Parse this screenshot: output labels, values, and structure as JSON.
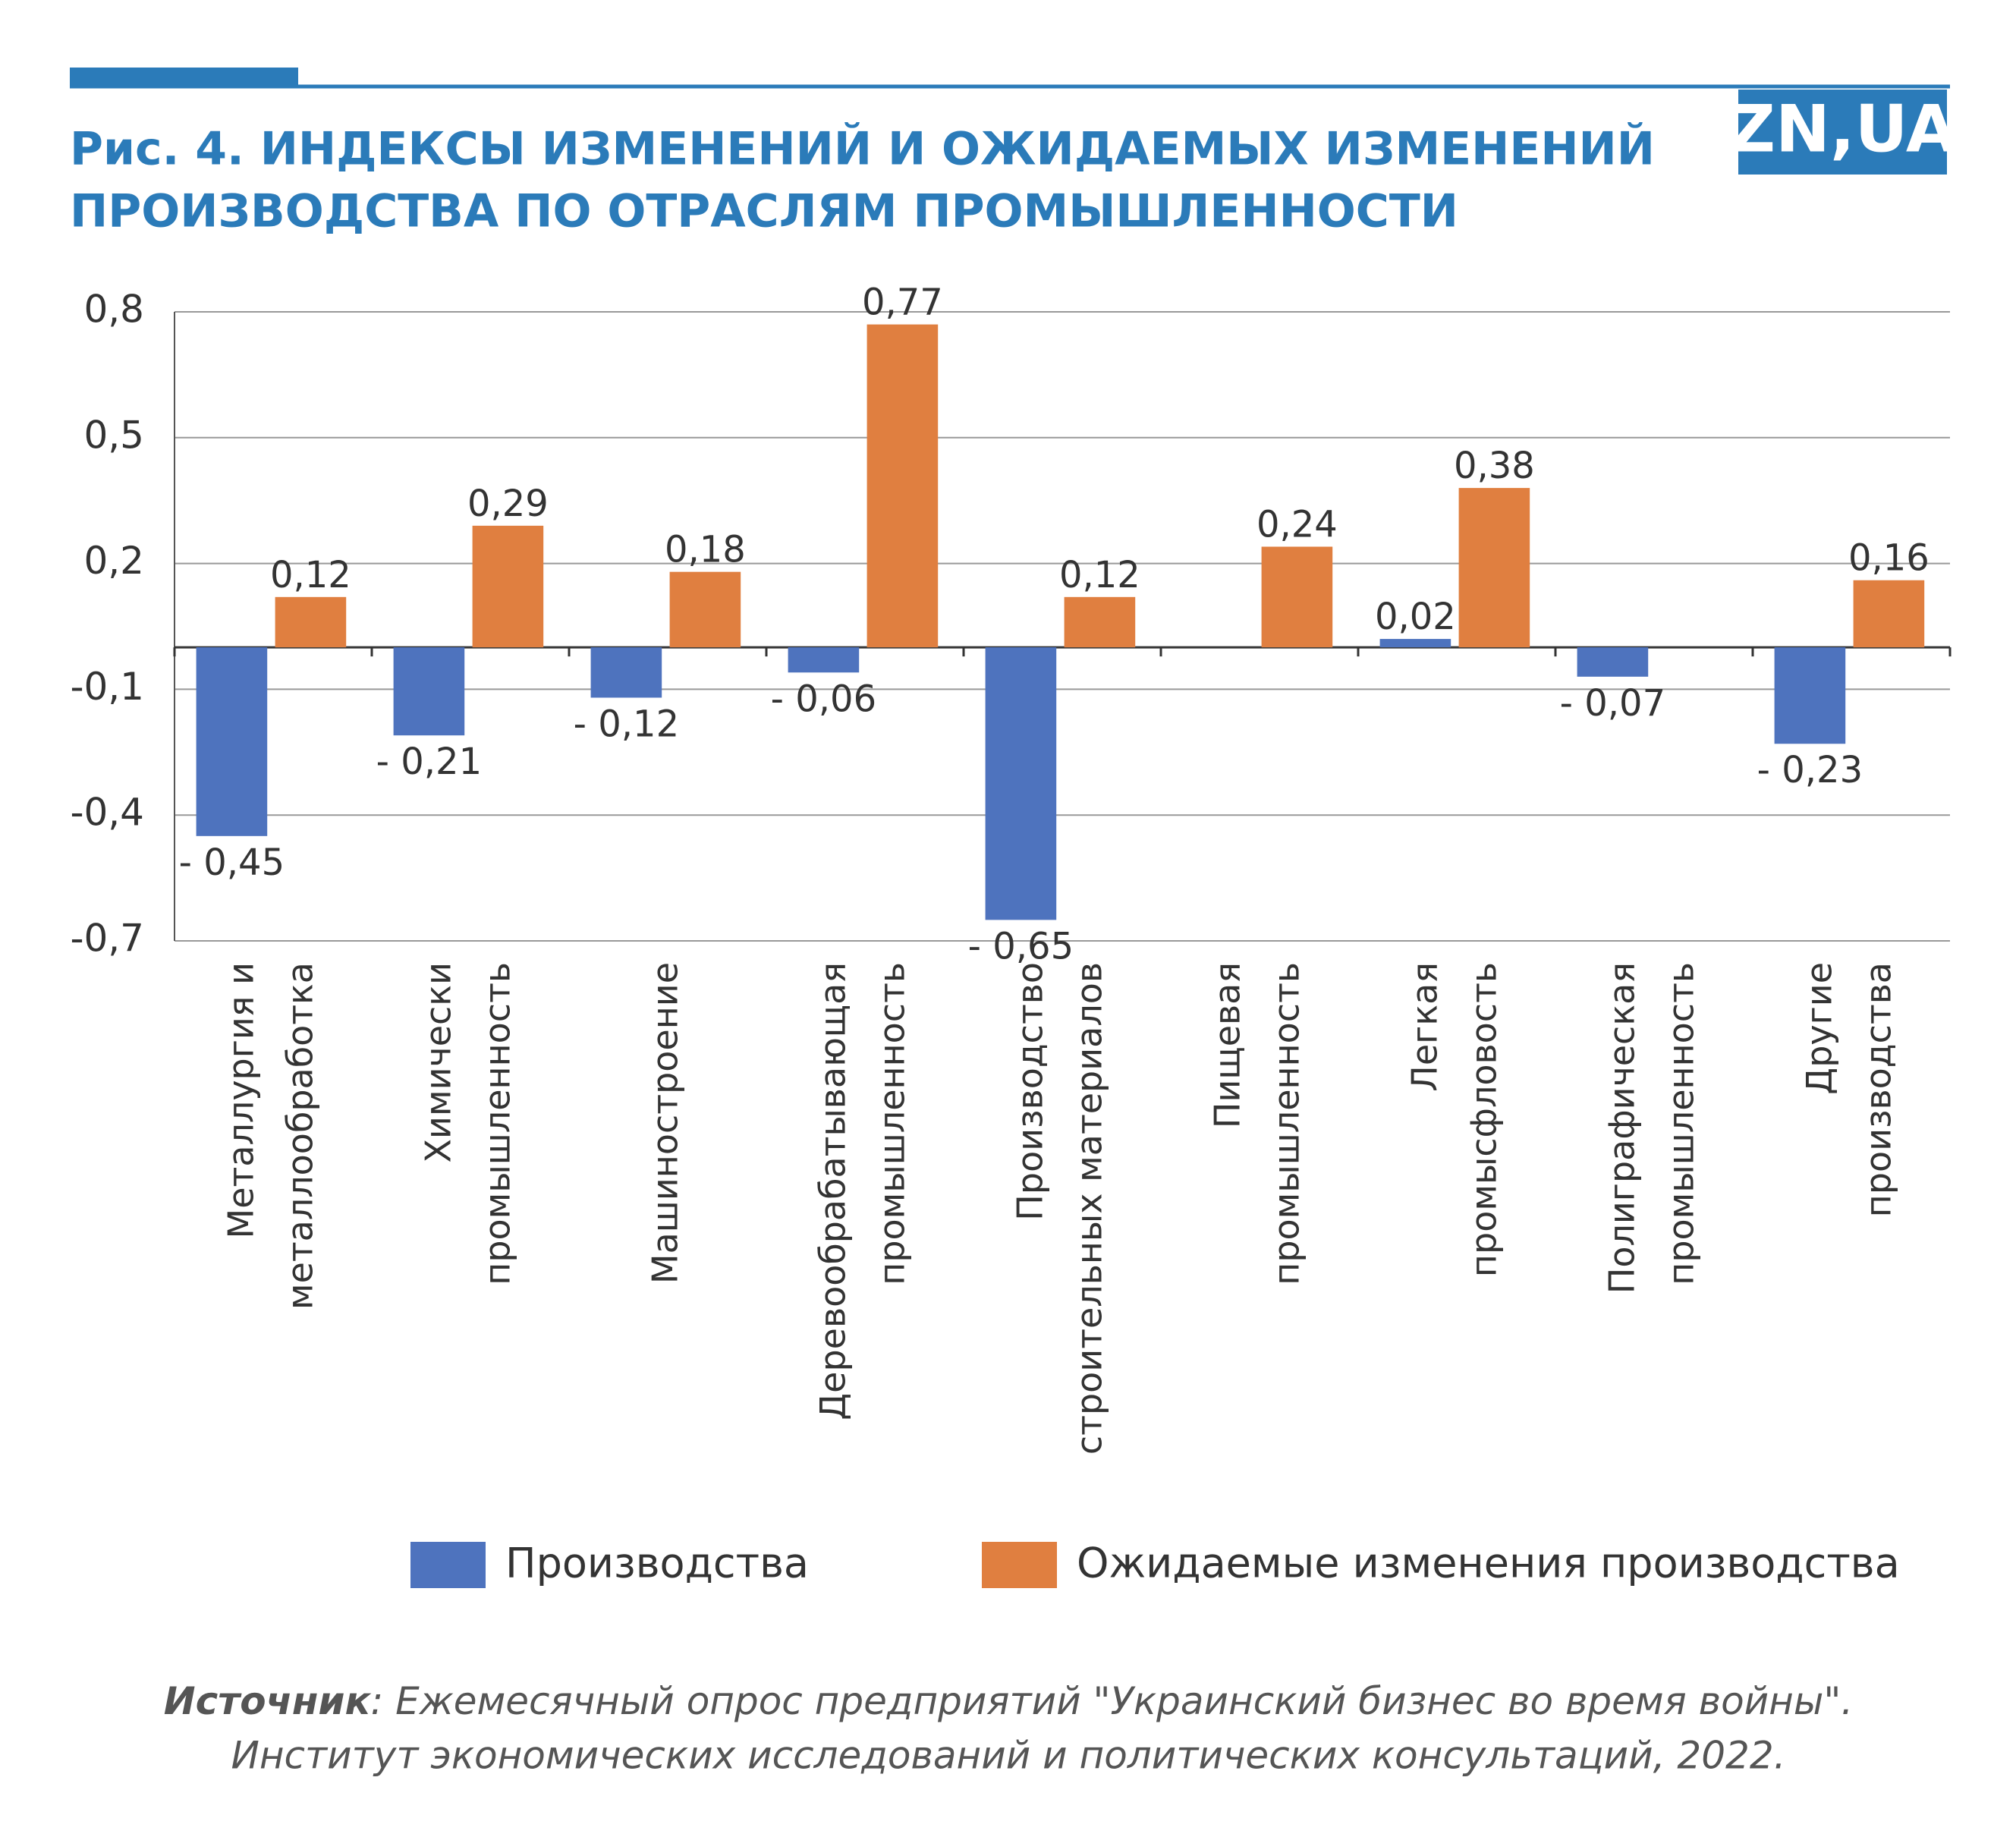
{
  "chart_data": {
    "type": "bar",
    "title": [
      "Рис. 4. ИНДЕКСЫ ИЗМЕНЕНИЙ И ОЖИДАЕМЫХ ИЗМЕНЕНИЙ",
      "ПРОИЗВОДСТВА ПО ОТРАСЛЯМ ПРОМЫШЛЕННОСТИ"
    ],
    "logo": "ZN,UA",
    "categories": [
      [
        "Металлургия и",
        "металлообработка"
      ],
      [
        "Химически",
        "промышленность"
      ],
      [
        "Машиностроение"
      ],
      [
        "Деревообрабатывающая",
        "промышленность"
      ],
      [
        "Производство",
        "строительных материалов"
      ],
      [
        "Пищевая",
        "промышленность"
      ],
      [
        "Легкая",
        "промысфловость"
      ],
      [
        "Полиграфическая",
        "промышленность"
      ],
      [
        "Другие",
        "производства"
      ]
    ],
    "series": [
      {
        "name": "Производства",
        "color": "#4e73be",
        "values": [
          -0.45,
          -0.21,
          -0.12,
          -0.06,
          -0.65,
          null,
          0.02,
          -0.07,
          -0.23
        ],
        "value_labels": [
          "- 0,45",
          "- 0,21",
          "- 0,12",
          "- 0,06",
          "- 0,65",
          null,
          "0,02",
          "- 0,07",
          "- 0,23"
        ]
      },
      {
        "name": "Ожидаемые изменения производства",
        "color": "#e07f40",
        "values": [
          0.12,
          0.29,
          0.18,
          0.77,
          0.12,
          0.24,
          0.38,
          null,
          0.16
        ],
        "value_labels": [
          "0,12",
          "0,29",
          "0,18",
          "0,77",
          "0,12",
          "0,24",
          "0,38",
          null,
          "0,16"
        ]
      }
    ],
    "ylim": [
      -0.7,
      0.8
    ],
    "yticks": [
      {
        "value": 0.8,
        "label": "0,8"
      },
      {
        "value": 0.5,
        "label": "0,5"
      },
      {
        "value": 0.2,
        "label": "0,2"
      },
      {
        "value": -0.1,
        "label": "-0,1"
      },
      {
        "value": -0.4,
        "label": "-0,4"
      },
      {
        "value": -0.7,
        "label": "-0,7"
      }
    ],
    "grid": true,
    "source": {
      "label": "Источник",
      "lines": [
        ": Ежемесячный опрос предприятий \"Украинский бизнес во время войны\".",
        "Институт экономических исследований и политических консультаций, 2022."
      ]
    }
  }
}
